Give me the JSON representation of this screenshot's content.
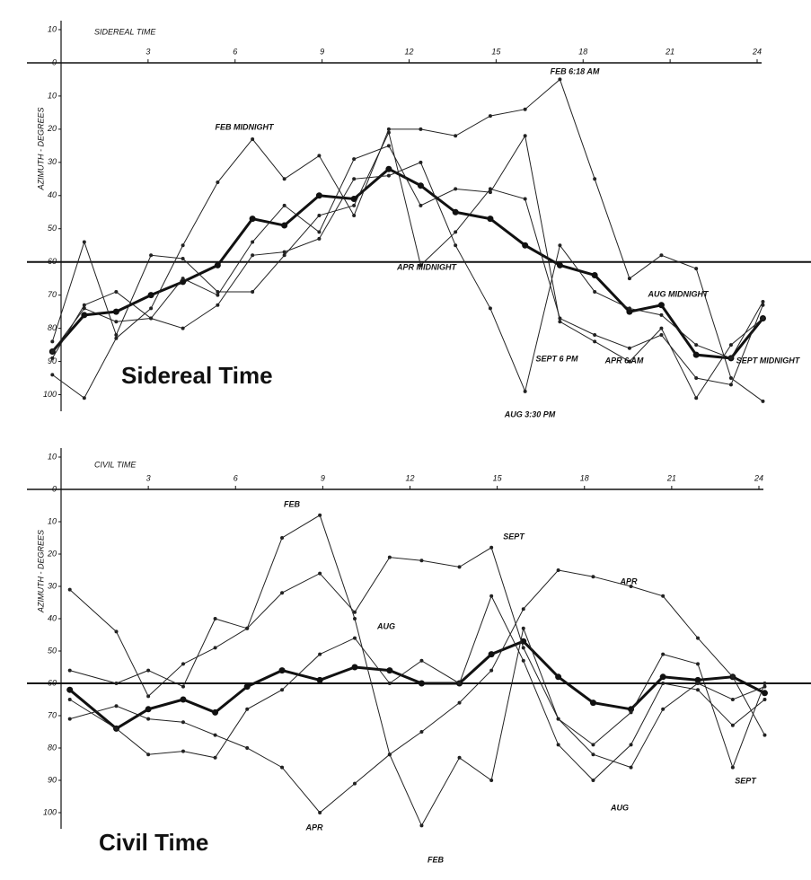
{
  "chart_data": [
    {
      "type": "line",
      "title": "Sidereal Time",
      "x_label": "SIDEREAL TIME",
      "y_label": "AZIMUTH - DEGREES",
      "xlim": [
        0,
        24
      ],
      "xticks": [
        3,
        6,
        9,
        12,
        15,
        18,
        21,
        24
      ],
      "ylim": [
        -10,
        105
      ],
      "yticks": [
        {
          "value": -10,
          "label": "10"
        },
        0,
        10,
        20,
        30,
        40,
        50,
        60,
        70,
        80,
        90,
        100
      ],
      "reference_value": 60,
      "x": [
        -0.3,
        0.8,
        1.9,
        3.1,
        4.2,
        5.4,
        6.6,
        7.7,
        8.9,
        10.1,
        11.3,
        12.4,
        13.6,
        14.8,
        16.0,
        17.2,
        18.4,
        19.6,
        20.7,
        21.9,
        23.1,
        24.2
      ],
      "series": [
        {
          "color": "#111111",
          "line_width": 3,
          "values": [
            87,
            76,
            75,
            70,
            66,
            61,
            47,
            49,
            40,
            41,
            32,
            37,
            45,
            47,
            55,
            61,
            64,
            75,
            73,
            88,
            89,
            77
          ]
        },
        {
          "color": "#222222",
          "line_width": 1,
          "values": [
            94,
            101,
            83,
            74,
            55,
            36,
            23,
            35,
            28,
            46,
            20,
            20,
            22,
            16,
            14,
            5,
            35,
            65,
            58,
            62,
            95,
            102
          ]
        },
        {
          "color": "#222222",
          "line_width": 1,
          "values": [
            84,
            54,
            82,
            58,
            59,
            69,
            69,
            58,
            46,
            43,
            21,
            61,
            51,
            38,
            41,
            77,
            82,
            86,
            82,
            95,
            97,
            73
          ]
        },
        {
          "color": "#222222",
          "line_width": 1,
          "values": [
            89,
            73,
            69,
            77,
            80,
            73,
            58,
            57,
            53,
            35,
            34,
            30,
            55,
            74,
            99,
            55,
            69,
            74,
            76,
            85,
            89,
            72
          ]
        },
        {
          "color": "#222222",
          "line_width": 1,
          "values": [
            87,
            74,
            78,
            77,
            65,
            70,
            54,
            43,
            51,
            29,
            25,
            43,
            38,
            39,
            22,
            78,
            84,
            90,
            80,
            101,
            85,
            77
          ]
        }
      ],
      "annotations": [
        "FEB MIDNIGHT",
        "FEB 6:18 AM",
        "APR MIDNIGHT",
        "SEPT 6 PM",
        "APR 6 AM",
        "AUG MIDNIGHT",
        "AUG 3:30 PM",
        "SEPT MIDNIGHT"
      ]
    },
    {
      "type": "line",
      "title": "Civil Time",
      "x_label": "CIVIL TIME",
      "y_label": "AZIMUTH - DEGREES",
      "xlim": [
        0,
        24
      ],
      "xticks": [
        3,
        6,
        9,
        12,
        15,
        18,
        21,
        24
      ],
      "ylim": [
        -10,
        105
      ],
      "yticks": [
        {
          "value": -10,
          "label": "10"
        },
        0,
        10,
        20,
        30,
        40,
        50,
        60,
        70,
        80,
        90,
        100
      ],
      "reference_value": 60,
      "x": [
        0.3,
        1.9,
        3.0,
        4.2,
        5.3,
        6.4,
        7.6,
        8.9,
        10.1,
        11.3,
        12.4,
        13.7,
        14.8,
        15.9,
        17.1,
        18.3,
        19.6,
        20.7,
        21.9,
        23.1,
        24.2
      ],
      "series": [
        {
          "color": "#111111",
          "line_width": 3,
          "values": [
            62,
            74,
            68,
            65,
            69,
            61,
            56,
            59,
            55,
            56,
            60,
            60,
            51,
            47,
            58,
            66,
            68,
            58,
            59,
            58,
            63
          ]
        },
        {
          "color": "#222222",
          "line_width": 1,
          "values": [
            56,
            60,
            56,
            61,
            40,
            43,
            15,
            8,
            40,
            82,
            104,
            83,
            90,
            43,
            71,
            82,
            86,
            68,
            60,
            65,
            61
          ]
        },
        {
          "color": "#222222",
          "line_width": 1,
          "values": [
            31,
            44,
            64,
            54,
            49,
            43,
            32,
            26,
            38,
            21,
            22,
            24,
            18,
            49,
            71,
            79,
            69,
            51,
            54,
            86,
            60
          ]
        },
        {
          "color": "#222222",
          "line_width": 1,
          "values": [
            71,
            67,
            71,
            72,
            76,
            80,
            86,
            100,
            91,
            82,
            75,
            66,
            56,
            37,
            25,
            27,
            30,
            33,
            46,
            58,
            76
          ]
        },
        {
          "color": "#222222",
          "line_width": 1,
          "values": [
            65,
            74,
            82,
            81,
            83,
            68,
            62,
            51,
            46,
            60,
            53,
            60,
            33,
            53,
            79,
            90,
            79,
            60,
            62,
            73,
            65
          ]
        }
      ],
      "annotations": [
        "FEB",
        "SEPT",
        "APR",
        "AUG",
        "APR",
        "FEB",
        "AUG",
        "SEPT"
      ]
    }
  ]
}
